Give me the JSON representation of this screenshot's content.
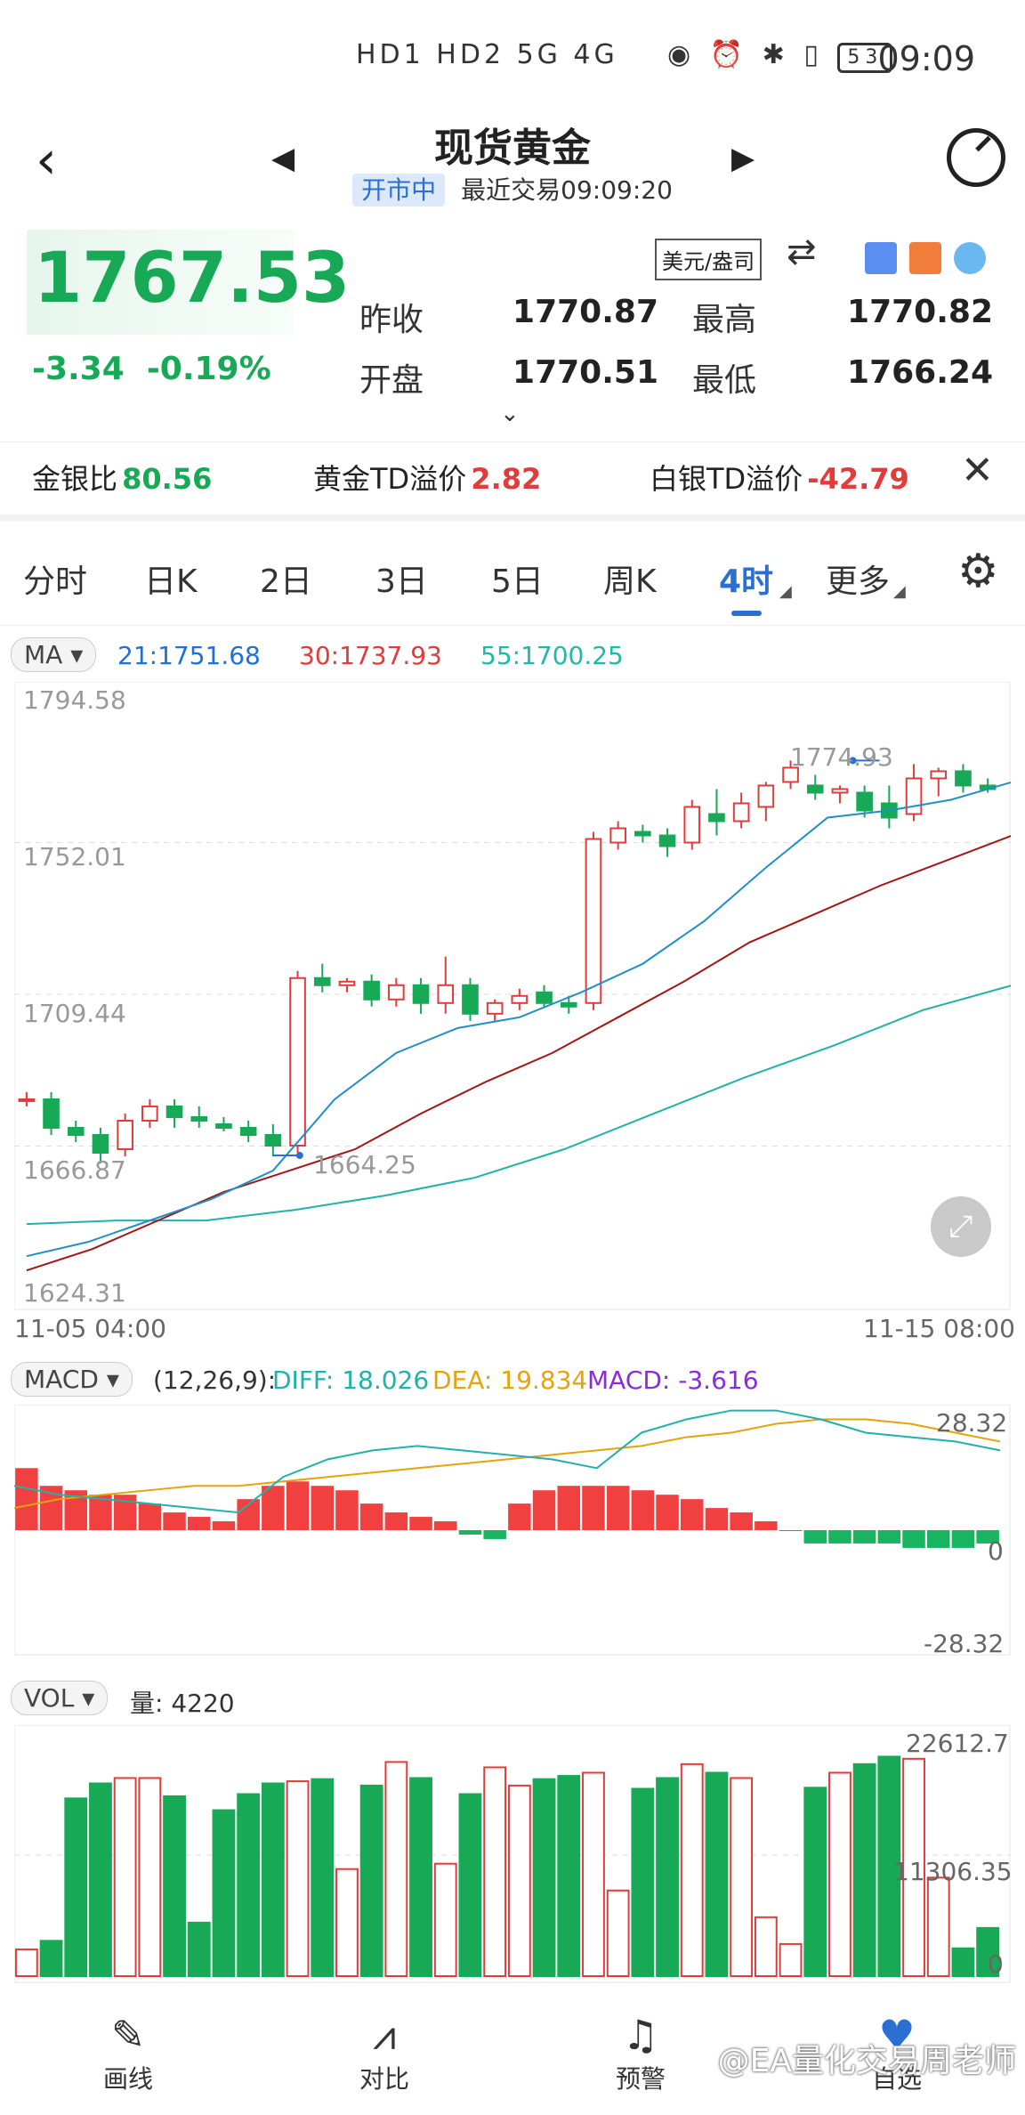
{
  "status": {
    "signal": "HD1 HD2 5G 4G",
    "battery": "53",
    "time": "09:09"
  },
  "header": {
    "title": "现货黄金",
    "market_status": "开市中",
    "last_trade": "最近交易09:09:20"
  },
  "quote": {
    "price": "1767.53",
    "change": "-3.34",
    "change_pct": "-0.19%",
    "unit": "美元/盎司",
    "prev_close_label": "昨收",
    "prev_close": "1770.87",
    "high_label": "最高",
    "high": "1770.82",
    "open_label": "开盘",
    "open": "1770.51",
    "low_label": "最低",
    "low": "1766.24"
  },
  "ratios": [
    {
      "label": "金银比",
      "value": "80.56",
      "color": "#18a957"
    },
    {
      "label": "黄金TD溢价",
      "value": "2.82",
      "color": "#e23b3b"
    },
    {
      "label": "白银TD溢价",
      "value": "-42.79",
      "color": "#e23b3b"
    }
  ],
  "tabs": [
    "分时",
    "日K",
    "2日",
    "3日",
    "5日",
    "周K",
    "4时",
    "更多"
  ],
  "active_tab": "4时",
  "ma": {
    "pill": "MA",
    "ma21": "21:1751.68",
    "ma30": "30:1737.93",
    "ma55": "55:1700.25"
  },
  "macd": {
    "pill": "MACD",
    "params": "(12,26,9):",
    "diff": "DIFF: 18.026",
    "dea": "DEA: 19.834",
    "macd": "MACD: -3.616",
    "top": "28.32",
    "zero": "0",
    "bottom": "-28.32"
  },
  "vol": {
    "pill": "VOL",
    "amount": "量: 4220",
    "top": "22612.7",
    "mid": "11306.35",
    "zero": "0"
  },
  "colors": {
    "up": "#e23b3b",
    "down": "#18a957",
    "ma21": "#1f8fc7",
    "ma30": "#a31515",
    "ma55": "#20b2aa",
    "accent": "#2b6fd3"
  },
  "chart_data": {
    "type": "candlestick",
    "y_ticks": [
      "1794.58",
      "1752.01",
      "1709.44",
      "1666.87",
      "1624.31"
    ],
    "ylim": [
      1624.31,
      1794.58
    ],
    "x_start": "11-05 04:00",
    "x_end": "11-15 08:00",
    "marker_high": "1774.93",
    "marker_low": "1664.25",
    "candles": [
      [
        1680,
        1682,
        1678,
        1680
      ],
      [
        1680,
        1682,
        1670,
        1672
      ],
      [
        1672,
        1674,
        1668,
        1670
      ],
      [
        1670,
        1672,
        1662,
        1665
      ],
      [
        1666,
        1676,
        1664,
        1674
      ],
      [
        1674,
        1680,
        1672,
        1678
      ],
      [
        1678,
        1680,
        1672,
        1675
      ],
      [
        1675,
        1678,
        1672,
        1674
      ],
      [
        1673,
        1675,
        1671,
        1672
      ],
      [
        1672,
        1674,
        1668,
        1670
      ],
      [
        1670,
        1673,
        1664,
        1667
      ],
      [
        1667,
        1716,
        1665,
        1714
      ],
      [
        1714,
        1718,
        1710,
        1712
      ],
      [
        1712,
        1714,
        1710,
        1713
      ],
      [
        1713,
        1715,
        1706,
        1708
      ],
      [
        1708,
        1714,
        1706,
        1712
      ],
      [
        1712,
        1714,
        1704,
        1707
      ],
      [
        1707,
        1720,
        1704,
        1712
      ],
      [
        1712,
        1714,
        1702,
        1704
      ],
      [
        1704,
        1708,
        1702,
        1707
      ],
      [
        1707,
        1711,
        1705,
        1709
      ],
      [
        1710,
        1712,
        1706,
        1707
      ],
      [
        1707,
        1709,
        1704,
        1706
      ],
      [
        1707,
        1755,
        1705,
        1753
      ],
      [
        1752,
        1758,
        1750,
        1756
      ],
      [
        1755,
        1757,
        1752,
        1754
      ],
      [
        1754,
        1756,
        1748,
        1751
      ],
      [
        1752,
        1764,
        1750,
        1762
      ],
      [
        1760,
        1767,
        1754,
        1758
      ],
      [
        1758,
        1766,
        1756,
        1763
      ],
      [
        1762,
        1769,
        1758,
        1768
      ],
      [
        1769,
        1775,
        1767,
        1773
      ],
      [
        1768,
        1771,
        1764,
        1766
      ],
      [
        1766,
        1768,
        1763,
        1767
      ],
      [
        1766,
        1768,
        1759,
        1761
      ],
      [
        1763,
        1768,
        1756,
        1759
      ],
      [
        1760,
        1774,
        1758,
        1770
      ],
      [
        1770,
        1773,
        1765,
        1772
      ],
      [
        1772,
        1774,
        1766,
        1768
      ],
      [
        1768,
        1770,
        1766,
        1767
      ]
    ],
    "ma21": [
      1636,
      1640,
      1646,
      1652,
      1660,
      1680,
      1693,
      1700,
      1703,
      1710,
      1718,
      1730,
      1745,
      1759,
      1761,
      1764,
      1769
    ],
    "ma30": [
      1632,
      1638,
      1646,
      1654,
      1660,
      1666,
      1676,
      1685,
      1693,
      1703,
      1713,
      1724,
      1732,
      1740,
      1747,
      1754
    ],
    "ma55": [
      1645,
      1646,
      1646,
      1649,
      1653,
      1658,
      1666,
      1676,
      1686,
      1695,
      1705,
      1712
    ],
    "diff": [
      10,
      8,
      7,
      6,
      5,
      4,
      12,
      16,
      18,
      19,
      18,
      17,
      16,
      14,
      22,
      25,
      27,
      27,
      25,
      22,
      21,
      20,
      18
    ],
    "dea": [
      5,
      7,
      8,
      9,
      10,
      10,
      11,
      12,
      13,
      14,
      15,
      16,
      17,
      18,
      19,
      21,
      22,
      24,
      25,
      25,
      24,
      22,
      20
    ],
    "macd": [
      14,
      10,
      9,
      8,
      8,
      6,
      4,
      3,
      2,
      7,
      10,
      11,
      10,
      9,
      6,
      4,
      3,
      2,
      -1,
      -2,
      6,
      9,
      10,
      10,
      10,
      9,
      8,
      7,
      5,
      4,
      2,
      0,
      -3,
      -3,
      -3,
      -3,
      -4,
      -4,
      -4,
      -3
    ],
    "volume": [
      2500,
      3300,
      16600,
      18000,
      18500,
      18500,
      16800,
      5000,
      15500,
      17000,
      18000,
      18200,
      18400,
      10000,
      17800,
      20000,
      18500,
      10500,
      17000,
      19500,
      17800,
      18400,
      18700,
      19000,
      8000,
      17500,
      18500,
      19800,
      19000,
      18500,
      5500,
      3000,
      17600,
      19000,
      19800,
      20500,
      20300,
      9200,
      2600,
      4500
    ]
  }
}
